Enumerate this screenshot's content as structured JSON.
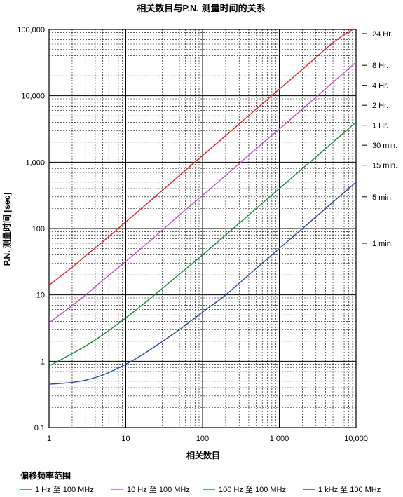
{
  "chart_data": {
    "type": "line",
    "title": "相关数目与P.N. 测量时间的关系",
    "xlabel": "相关数目",
    "ylabel": "P.N. 测量时间 [sec]",
    "xscale": "log",
    "yscale": "log",
    "xlim": [
      1,
      10000
    ],
    "ylim": [
      0.1,
      100000
    ],
    "grid": true,
    "x_ticks": [
      {
        "value": 1,
        "label": "1"
      },
      {
        "value": 10,
        "label": "10"
      },
      {
        "value": 100,
        "label": "100"
      },
      {
        "value": 1000,
        "label": "1,000"
      },
      {
        "value": 10000,
        "label": "10,000"
      }
    ],
    "y_ticks": [
      {
        "value": 0.1,
        "label": "0.1"
      },
      {
        "value": 1,
        "label": "1"
      },
      {
        "value": 10,
        "label": "10"
      },
      {
        "value": 100,
        "label": "100"
      },
      {
        "value": 1000,
        "label": "1,000"
      },
      {
        "value": 10000,
        "label": "10,000"
      },
      {
        "value": 100000,
        "label": "100,000"
      }
    ],
    "time_marks": [
      {
        "seconds": 86400,
        "label": "24 Hr."
      },
      {
        "seconds": 28800,
        "label": "8 Hr."
      },
      {
        "seconds": 14400,
        "label": "4 Hr."
      },
      {
        "seconds": 7200,
        "label": "2 Hr."
      },
      {
        "seconds": 3600,
        "label": "1 Hr."
      },
      {
        "seconds": 1800,
        "label": "30 min."
      },
      {
        "seconds": 900,
        "label": "15 min."
      },
      {
        "seconds": 300,
        "label": "5 min."
      },
      {
        "seconds": 60,
        "label": "1 min."
      }
    ],
    "legend_title": "偏移频率范围",
    "legend_position": "bottom",
    "series": [
      {
        "name": "1 Hz 至 100 MHz",
        "color": "#e8232a",
        "x": [
          1,
          2,
          3,
          5,
          10,
          20,
          50,
          100,
          200,
          500,
          1000,
          2000,
          5000,
          9000
        ],
        "y": [
          14,
          26,
          39,
          63,
          126,
          250,
          630,
          1260,
          2500,
          6300,
          12600,
          25000,
          63000,
          100000
        ]
      },
      {
        "name": "10 Hz 至 100 MHz",
        "color": "#c456c8",
        "x": [
          1,
          2,
          3,
          5,
          10,
          20,
          50,
          100,
          200,
          500,
          1000,
          2000,
          5000,
          10000
        ],
        "y": [
          3.8,
          6.9,
          10,
          16.5,
          32,
          63,
          160,
          315,
          630,
          1600,
          3150,
          6300,
          16000,
          32000
        ]
      },
      {
        "name": "100 Hz 至 100 MHz",
        "color": "#1a8c3c",
        "x": [
          1,
          2,
          3,
          5,
          10,
          20,
          50,
          100,
          200,
          500,
          1000,
          2000,
          5000,
          10000
        ],
        "y": [
          0.85,
          1.3,
          1.7,
          2.5,
          4.5,
          8.5,
          20.5,
          40,
          80,
          200,
          400,
          800,
          2000,
          4000
        ]
      },
      {
        "name": "1 kHz 至 100 MHz",
        "color": "#2a4aa0",
        "x": [
          1,
          2,
          3,
          5,
          10,
          20,
          50,
          100,
          200,
          500,
          1000,
          2000,
          5000,
          10000
        ],
        "y": [
          0.45,
          0.48,
          0.52,
          0.62,
          0.9,
          1.45,
          3.0,
          5.5,
          10,
          25,
          50,
          100,
          250,
          500
        ]
      }
    ]
  }
}
